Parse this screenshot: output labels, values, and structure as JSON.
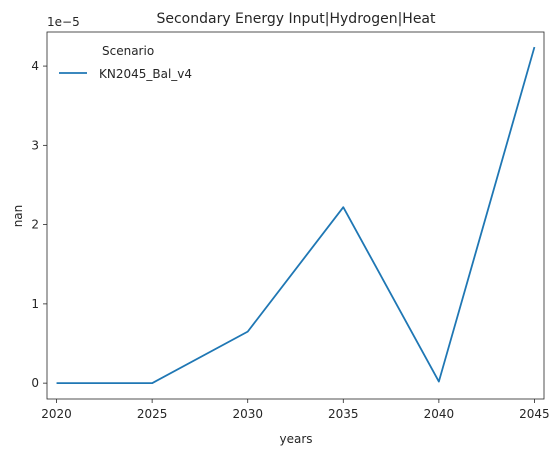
{
  "chart_data": {
    "type": "line",
    "title": "Secondary Energy Input|Hydrogen|Heat",
    "xlabel": "years",
    "ylabel": "nan",
    "scale_label": "1e−5",
    "x": [
      2020,
      2025,
      2030,
      2035,
      2040,
      2045
    ],
    "x_ticks": [
      2020,
      2025,
      2030,
      2035,
      2040,
      2045
    ],
    "y_ticks": [
      0,
      1,
      2,
      3,
      4
    ],
    "y_scale_exponent": -5,
    "xlim": [
      2019.5,
      2045.5
    ],
    "ylim": [
      -0.2,
      4.43
    ],
    "grid": false,
    "legend": {
      "title": "Scenario",
      "placement": "top-left"
    },
    "series": [
      {
        "name": "KN2045_Bal_v4",
        "color": "#1f77b4",
        "values": [
          0.0,
          0.0,
          0.65,
          2.22,
          0.02,
          4.24
        ]
      }
    ]
  }
}
